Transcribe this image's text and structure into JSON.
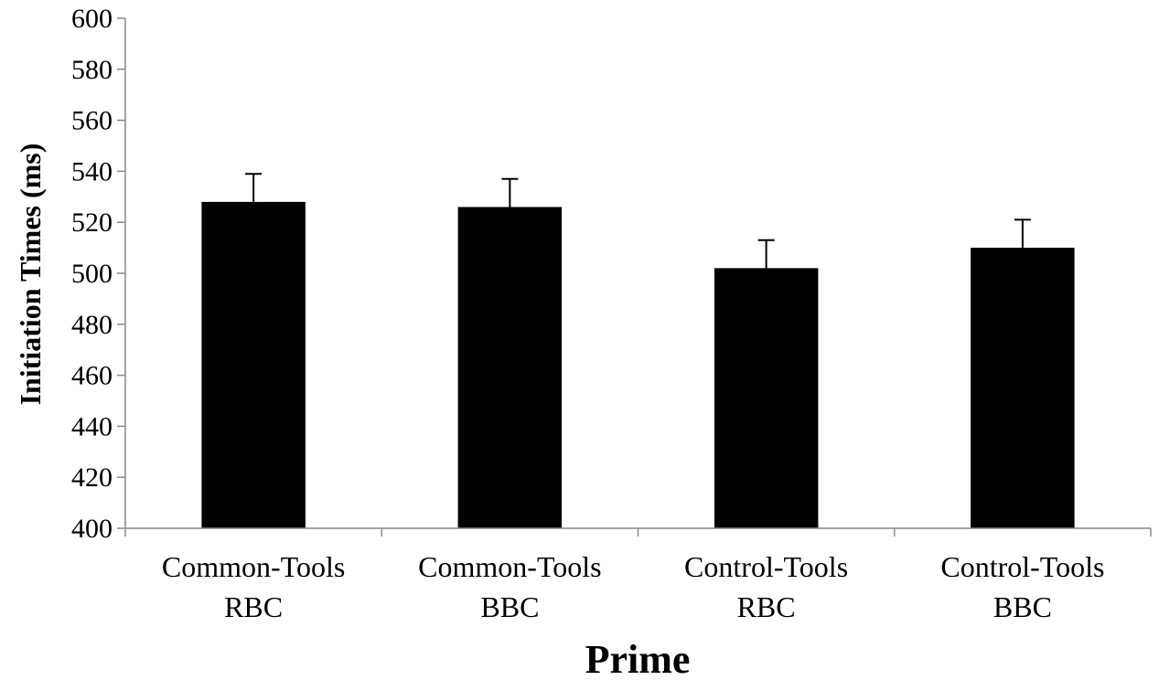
{
  "chart_data": {
    "type": "bar",
    "title": "",
    "xlabel": "Prime",
    "ylabel": "Initiation Times (ms)",
    "ylim": [
      400,
      600
    ],
    "ytick_step": 20,
    "grid": false,
    "legend": "none",
    "bar_color": "#000000",
    "categories": [
      [
        "Common-Tools",
        "RBC"
      ],
      [
        "Common-Tools",
        "BBC"
      ],
      [
        "Control-Tools",
        "RBC"
      ],
      [
        "Control-Tools",
        "BBC"
      ]
    ],
    "values": [
      528,
      526,
      502,
      510
    ],
    "error_upper": [
      11,
      11,
      11,
      11
    ]
  }
}
